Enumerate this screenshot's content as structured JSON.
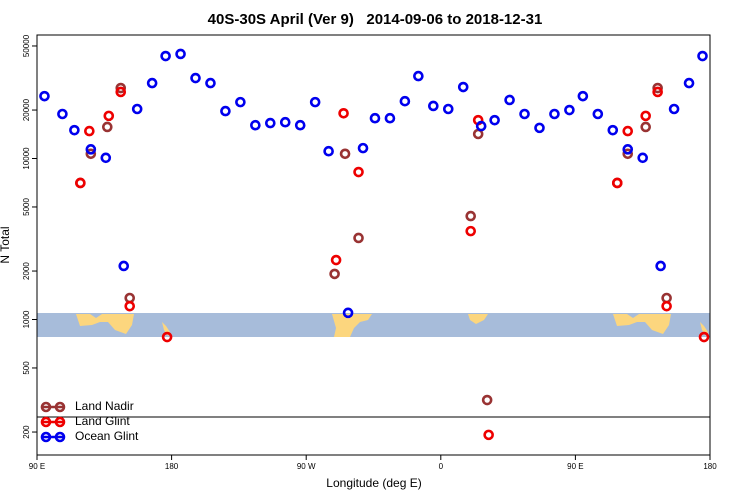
{
  "chart_data": {
    "type": "scatter",
    "title": "40S-30S April (Ver 9)   2014-09-06 to 2018-12-31",
    "x_label": "Longitude (deg E)",
    "y_label": "N Total",
    "log_y": true,
    "legend": "bottomleft",
    "xlim": [
      90,
      540
    ],
    "xticks": [
      {
        "value": 90,
        "label": "90 E"
      },
      {
        "value": 180,
        "label": "180"
      },
      {
        "value": 270,
        "label": "90 W"
      },
      {
        "value": 360,
        "label": "0"
      },
      {
        "value": 450,
        "label": "90 E"
      },
      {
        "value": 540,
        "label": "180"
      }
    ],
    "ylim": [
      144,
      58500
    ],
    "yticks": [
      200,
      500,
      1000,
      2000,
      5000,
      10000,
      20000,
      50000
    ],
    "series": [
      {
        "name": "Land Nadir",
        "color": "#993333",
        "x": [
          119,
          126,
          137,
          146,
          152,
          289,
          296,
          305,
          380,
          385,
          391,
          478,
          485,
          497,
          505,
          511
        ],
        "values": [
          7050,
          10700,
          15700,
          27400,
          1360,
          1920,
          10700,
          3210,
          4390,
          14200,
          316,
          7050,
          10700,
          15700,
          27400,
          1360
        ]
      },
      {
        "name": "Land Glint",
        "color": "#ee0000",
        "x": [
          119,
          125,
          138,
          146,
          152,
          177,
          290,
          295,
          305,
          380,
          385,
          392,
          478,
          485,
          497,
          505,
          511,
          536
        ],
        "values": [
          7050,
          14800,
          18400,
          25900,
          1210,
          778,
          2340,
          19100,
          8240,
          3540,
          17300,
          192,
          7050,
          14800,
          18400,
          25900,
          1210,
          778
        ]
      },
      {
        "name": "Ocean Glint",
        "color": "#0000ee",
        "x": [
          95,
          107,
          115,
          126,
          136,
          148,
          157,
          167,
          176,
          186,
          196,
          206,
          216,
          226,
          236,
          246,
          256,
          266,
          276,
          285,
          298,
          308,
          316,
          326,
          336,
          345,
          355,
          365,
          375,
          387,
          396,
          406,
          416,
          426,
          436,
          446,
          455,
          465,
          475,
          485,
          495,
          507,
          516,
          526,
          535
        ],
        "values": [
          24400,
          18900,
          15000,
          11400,
          10100,
          2150,
          20300,
          29400,
          43300,
          44600,
          31600,
          29400,
          19700,
          22400,
          16100,
          16600,
          16800,
          16100,
          22400,
          11100,
          1100,
          11600,
          17800,
          17800,
          22700,
          32500,
          21200,
          20300,
          27800,
          15900,
          17300,
          23100,
          18900,
          15500,
          18900,
          20000,
          24400,
          18900,
          15000,
          11400,
          10100,
          2150,
          20300,
          29400,
          43300
        ]
      }
    ]
  }
}
